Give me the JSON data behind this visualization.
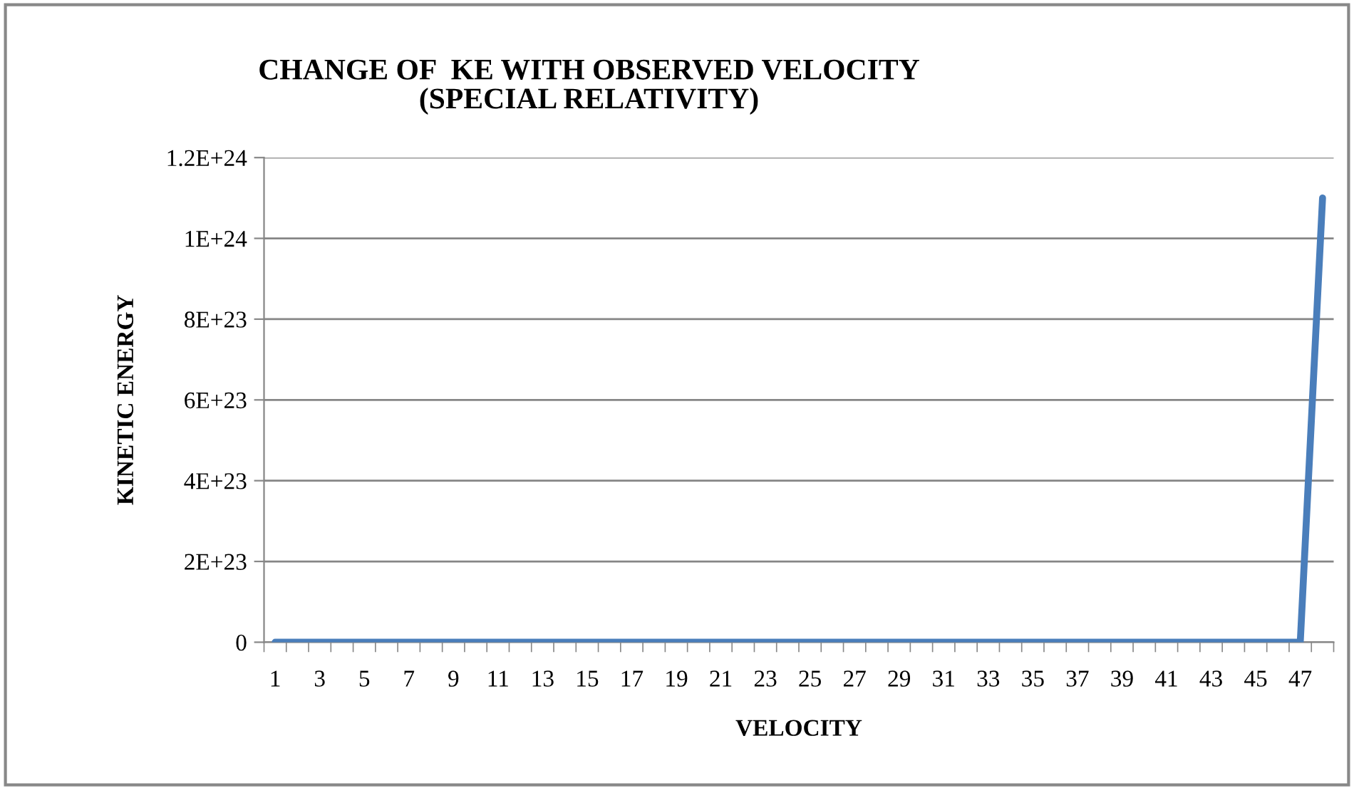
{
  "chart_data": {
    "type": "line",
    "title": "CHANGE OF  KE WITH OBSERVED VELOCITY\n(SPECIAL RELATIVITY)",
    "xlabel": "VELOCITY",
    "ylabel": "KINETIC ENERGY",
    "categories": [
      "1",
      null,
      "3",
      null,
      "5",
      null,
      "7",
      null,
      "9",
      null,
      "11",
      null,
      "13",
      null,
      "15",
      null,
      "17",
      null,
      "19",
      null,
      "21",
      null,
      "23",
      null,
      "25",
      null,
      "27",
      null,
      "29",
      null,
      "31",
      null,
      "33",
      null,
      "35",
      null,
      "37",
      null,
      "39",
      null,
      "41",
      null,
      "43",
      null,
      "45",
      null,
      "47",
      null
    ],
    "series": [
      {
        "color": "#4a7ebb",
        "values": [
          0,
          0,
          0,
          0,
          0,
          0,
          0,
          0,
          0,
          0,
          0,
          0,
          0,
          0,
          0,
          0,
          0,
          0,
          0,
          0,
          0,
          0,
          0,
          0,
          0,
          0,
          0,
          0,
          0,
          0,
          0,
          0,
          0,
          0,
          0,
          0,
          0,
          0,
          0,
          0,
          0,
          0,
          0,
          0,
          0,
          0,
          0,
          1.1e+24
        ]
      }
    ],
    "ylim": [
      0,
      1.2e+24
    ],
    "yticks": [
      {
        "value": 0,
        "label": "0"
      },
      {
        "value": 2e+23,
        "label": "2E+23"
      },
      {
        "value": 4e+23,
        "label": "4E+23"
      },
      {
        "value": 6e+23,
        "label": "6E+23"
      },
      {
        "value": 8e+23,
        "label": "8E+23"
      },
      {
        "value": 1e+24,
        "label": "1E+24"
      },
      {
        "value": 1.2e+24,
        "label": "1.2E+24"
      }
    ],
    "grid": "y",
    "marker": "none",
    "line_style": "solid"
  }
}
